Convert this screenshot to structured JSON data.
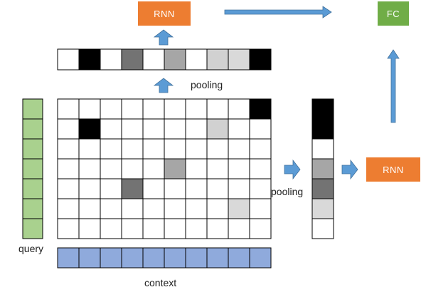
{
  "labels": {
    "rnn_top": "RNN",
    "fc": "FC",
    "rnn_right": "RNN",
    "pooling_top": "pooling",
    "pooling_mid": "pooling",
    "query": "query",
    "context": "context"
  },
  "colors": {
    "rnn": "#ed7d31",
    "fc": "#70ad47",
    "arrow": "#5b9bd5",
    "query_cell": "#a9d18e",
    "context_cell": "#8faadc",
    "grid_line": "#000000"
  },
  "matrix": {
    "rows": 7,
    "cols": 10,
    "cells": [
      [
        0,
        0,
        0,
        0,
        0,
        0,
        0,
        0,
        0,
        100
      ],
      [
        0,
        100,
        0,
        0,
        0,
        0,
        0,
        18,
        0,
        0
      ],
      [
        0,
        0,
        0,
        0,
        0,
        0,
        0,
        0,
        0,
        0
      ],
      [
        0,
        0,
        0,
        0,
        0,
        35,
        0,
        0,
        0,
        0
      ],
      [
        0,
        0,
        0,
        55,
        0,
        0,
        0,
        0,
        0,
        0
      ],
      [
        0,
        0,
        0,
        0,
        0,
        0,
        0,
        0,
        15,
        0
      ],
      [
        0,
        0,
        0,
        0,
        0,
        0,
        0,
        0,
        0,
        0
      ]
    ]
  },
  "pooled_row": [
    0,
    100,
    0,
    55,
    0,
    35,
    0,
    18,
    15,
    100
  ],
  "pooled_col": [
    100,
    100,
    0,
    35,
    55,
    15,
    0
  ],
  "query_cells": 7,
  "context_cells": 10
}
